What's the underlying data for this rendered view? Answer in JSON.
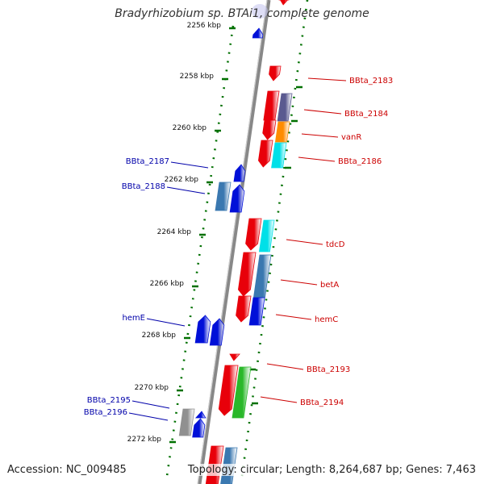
{
  "title": "Bradyrhizobium sp. BTAi1, complete genome",
  "accession": "Accession: NC_009485",
  "topology": "Topology: circular; Length: 8,264,687 bp; Genes: 7,463",
  "ticks": [
    "2256 kbp",
    "2258 kbp",
    "2260 kbp",
    "2262 kbp",
    "2264 kbp",
    "2266 kbp",
    "2268 kbp",
    "2270 kbp",
    "2272 kbp"
  ],
  "colors": {
    "red": "#e8000a",
    "blue": "#0010d8",
    "steelblue": "#3a78b0",
    "cyan": "#00e0e8",
    "orange": "#ff8c00",
    "green": "#2ab82a",
    "gray": "#909090",
    "slate": "#5a5a90",
    "tick": "#007000",
    "label_red": "#cc0000",
    "label_blue": "#0000aa"
  },
  "gene_labels": [
    {
      "text": "BBta_2183",
      "color": "red"
    },
    {
      "text": "BBta_2184",
      "color": "red"
    },
    {
      "text": "vanR",
      "color": "red"
    },
    {
      "text": "BBta_2186",
      "color": "red"
    },
    {
      "text": "BBta_2187",
      "color": "blue"
    },
    {
      "text": "BBta_2188",
      "color": "blue"
    },
    {
      "text": "tdcD",
      "color": "red"
    },
    {
      "text": "betA",
      "color": "red"
    },
    {
      "text": "hemC",
      "color": "red"
    },
    {
      "text": "hemE",
      "color": "blue"
    },
    {
      "text": "BBta_2193",
      "color": "red"
    },
    {
      "text": "BBta_2194",
      "color": "red"
    },
    {
      "text": "BBta_2195",
      "color": "blue"
    },
    {
      "text": "BBta_2196",
      "color": "blue"
    }
  ]
}
